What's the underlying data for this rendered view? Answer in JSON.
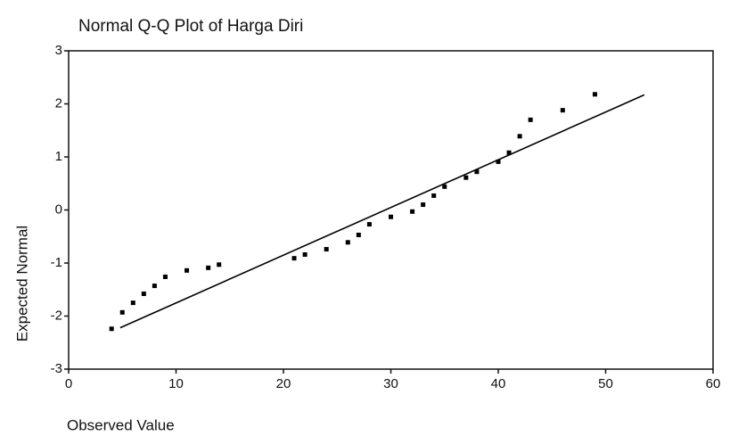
{
  "chart_data": {
    "type": "scatter",
    "title": "Normal Q-Q Plot of Harga Diri",
    "x_label": "Observed Value",
    "y_label": "Expected Normal",
    "points": {
      "x": [
        4,
        5,
        6,
        7,
        8,
        9,
        11,
        13,
        14,
        21,
        22,
        24,
        26,
        27,
        28,
        30,
        32,
        33,
        34,
        35,
        37,
        38,
        40,
        41,
        42,
        43,
        46,
        49
      ],
      "y": [
        -2.24,
        -1.93,
        -1.75,
        -1.58,
        -1.43,
        -1.26,
        -1.14,
        -1.09,
        -1.03,
        -0.91,
        -0.84,
        -0.74,
        -0.61,
        -0.47,
        -0.27,
        -0.13,
        -0.03,
        0.1,
        0.27,
        0.44,
        0.61,
        0.72,
        0.91,
        1.08,
        1.39,
        1.7,
        1.88,
        2.18
      ],
      "color": "#000000"
    },
    "line": {
      "x": [
        4.8,
        53.6
      ],
      "y": [
        -2.22,
        2.17
      ],
      "color": "#000000"
    },
    "xlim": [
      0,
      60
    ],
    "ylim": [
      -3,
      3
    ],
    "xticks": [
      0,
      10,
      20,
      30,
      40,
      50,
      60
    ],
    "yticks": [
      -3,
      -2,
      -1,
      0,
      1,
      2,
      3
    ],
    "grid": false
  }
}
